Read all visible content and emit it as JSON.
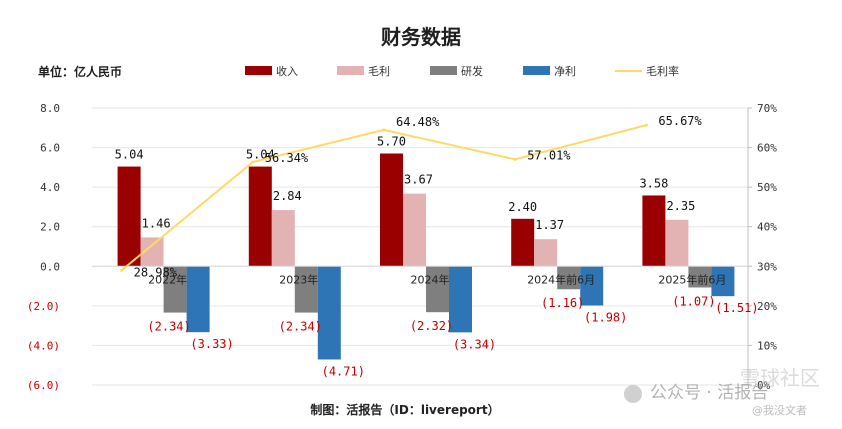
{
  "chart_data": {
    "type": "bar",
    "title": "财务数据",
    "unit_label": "单位：亿人民币",
    "source_label": "制图：活报告（ID：livereport）",
    "categories": [
      "2022年",
      "2023年",
      "2024年",
      "2024年前6月",
      "2025年前6月"
    ],
    "series": [
      {
        "name": "收入",
        "color": "#9b0000",
        "values": [
          5.04,
          5.04,
          5.7,
          2.4,
          3.58
        ],
        "labels": [
          "5.04",
          "5.04",
          "5.70",
          "2.40",
          "3.58"
        ]
      },
      {
        "name": "毛利",
        "color": "#e3b3b3",
        "values": [
          1.46,
          2.84,
          3.67,
          1.37,
          2.35
        ],
        "labels": [
          "1.46",
          "2.84",
          "3.67",
          "1.37",
          "2.35"
        ]
      },
      {
        "name": "研发",
        "color": "#7f7f7f",
        "values": [
          -2.34,
          -2.34,
          -2.32,
          -1.16,
          -1.07
        ],
        "labels": [
          "(2.34)",
          "(2.34)",
          "(2.32)",
          "(1.16)",
          "(1.07)"
        ]
      },
      {
        "name": "净利",
        "color": "#2e75b6",
        "values": [
          -3.33,
          -4.71,
          -3.34,
          -1.98,
          -1.51
        ],
        "labels": [
          "(3.33)",
          "(4.71)",
          "(3.34)",
          "(1.98)",
          "(1.51)"
        ]
      }
    ],
    "line_series": {
      "name": "毛利率",
      "color": "#ffd966",
      "axis": "right",
      "values": [
        28.98,
        56.34,
        64.48,
        57.01,
        65.67
      ],
      "labels": [
        "28.98%",
        "56.34%",
        "64.48%",
        "57.01%",
        "65.67%"
      ]
    },
    "y_left": {
      "min": -6,
      "max": 8,
      "ticks": [
        8,
        6,
        4,
        2,
        0,
        -2,
        -4,
        -6
      ],
      "tick_labels": [
        "8.0",
        "6.0",
        "4.0",
        "2.0",
        "0.0",
        "(2.0)",
        "(4.0)",
        "(6.0)"
      ]
    },
    "y_right": {
      "min": 0,
      "max": 70,
      "ticks": [
        70,
        60,
        50,
        40,
        30,
        20,
        10,
        0
      ],
      "tick_labels": [
        "70%",
        "60%",
        "50%",
        "40%",
        "30%",
        "20%",
        "10%",
        "0%"
      ]
    },
    "negative_label_color": "#c00000"
  },
  "watermark": {
    "text": "公众号 · 活报告",
    "text2": "雪球社区",
    "text3": "@我没文者"
  }
}
